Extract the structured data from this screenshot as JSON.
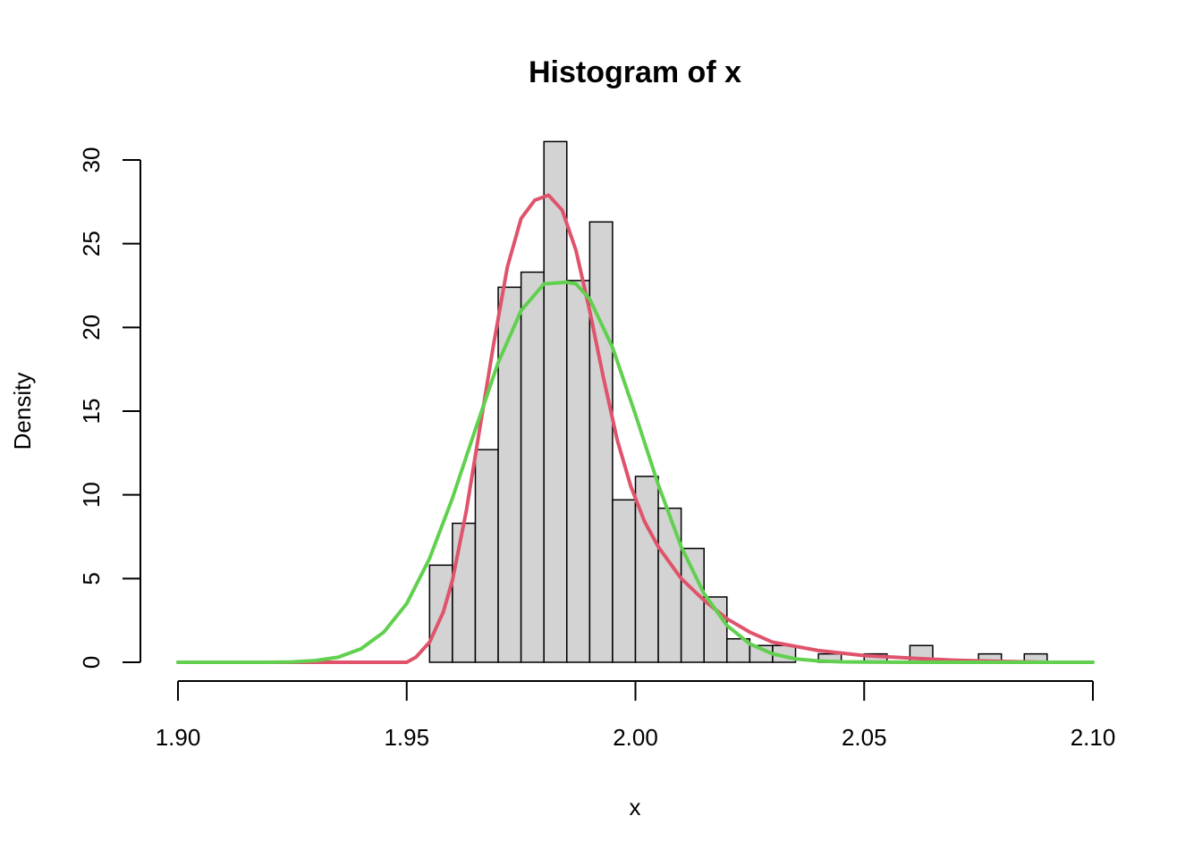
{
  "chart_data": {
    "type": "bar",
    "title": "Histogram of x",
    "xlabel": "x",
    "ylabel": "Density",
    "xlim": [
      1.9,
      2.1
    ],
    "ylim": [
      0,
      30
    ],
    "x_ticks": [
      "1.90",
      "1.95",
      "2.00",
      "2.05",
      "2.10"
    ],
    "x_tick_values": [
      1.9,
      1.95,
      2.0,
      2.05,
      2.1
    ],
    "y_ticks": [
      "0",
      "5",
      "10",
      "15",
      "20",
      "25",
      "30"
    ],
    "y_tick_values": [
      0,
      5,
      10,
      15,
      20,
      25,
      30
    ],
    "bin_width": 0.005,
    "bins": [
      {
        "start": 1.955,
        "density": 5.8
      },
      {
        "start": 1.96,
        "density": 8.3
      },
      {
        "start": 1.965,
        "density": 12.7
      },
      {
        "start": 1.97,
        "density": 22.4
      },
      {
        "start": 1.975,
        "density": 23.3
      },
      {
        "start": 1.98,
        "density": 31.1
      },
      {
        "start": 1.985,
        "density": 22.8
      },
      {
        "start": 1.99,
        "density": 26.3
      },
      {
        "start": 1.995,
        "density": 9.7
      },
      {
        "start": 2.0,
        "density": 11.1
      },
      {
        "start": 2.005,
        "density": 9.2
      },
      {
        "start": 2.01,
        "density": 6.8
      },
      {
        "start": 2.015,
        "density": 3.9
      },
      {
        "start": 2.02,
        "density": 1.4
      },
      {
        "start": 2.025,
        "density": 1.0
      },
      {
        "start": 2.03,
        "density": 1.0
      },
      {
        "start": 2.035,
        "density": 0.0
      },
      {
        "start": 2.04,
        "density": 0.5
      },
      {
        "start": 2.045,
        "density": 0.0
      },
      {
        "start": 2.05,
        "density": 0.5
      },
      {
        "start": 2.055,
        "density": 0.0
      },
      {
        "start": 2.06,
        "density": 1.0
      },
      {
        "start": 2.065,
        "density": 0.0
      },
      {
        "start": 2.07,
        "density": 0.0
      },
      {
        "start": 2.075,
        "density": 0.5
      },
      {
        "start": 2.08,
        "density": 0.0
      },
      {
        "start": 2.085,
        "density": 0.5
      }
    ],
    "curves": [
      {
        "color": "#DF536B",
        "x": [
          1.9,
          1.92,
          1.94,
          1.95,
          1.952,
          1.955,
          1.958,
          1.96,
          1.963,
          1.966,
          1.969,
          1.972,
          1.975,
          1.978,
          1.981,
          1.984,
          1.987,
          1.99,
          1.993,
          1.996,
          1.999,
          2.002,
          2.005,
          2.01,
          2.015,
          2.02,
          2.025,
          2.03,
          2.04,
          2.05,
          2.06,
          2.07,
          2.08,
          2.09
        ],
        "y": [
          0,
          0,
          0,
          0,
          0.3,
          1.2,
          3.0,
          4.9,
          9.0,
          14.0,
          19.0,
          23.6,
          26.5,
          27.6,
          27.9,
          27.0,
          24.6,
          21.0,
          17.0,
          13.3,
          10.5,
          8.4,
          6.9,
          5.0,
          3.7,
          2.6,
          1.8,
          1.2,
          0.7,
          0.4,
          0.25,
          0.12,
          0.05,
          0.0
        ]
      },
      {
        "color": "#61D04F",
        "x": [
          1.9,
          1.92,
          1.925,
          1.93,
          1.935,
          1.94,
          1.945,
          1.95,
          1.955,
          1.96,
          1.965,
          1.97,
          1.975,
          1.98,
          1.985,
          1.987,
          1.99,
          1.995,
          2.0,
          2.005,
          2.01,
          2.015,
          2.02,
          2.025,
          2.03,
          2.035,
          2.04,
          2.045,
          2.05,
          2.06,
          2.08,
          2.1
        ],
        "y": [
          0,
          0,
          0.02,
          0.1,
          0.3,
          0.8,
          1.8,
          3.5,
          6.2,
          9.8,
          13.9,
          17.9,
          21.0,
          22.6,
          22.7,
          22.6,
          21.7,
          18.8,
          14.8,
          10.6,
          6.9,
          4.1,
          2.2,
          1.1,
          0.5,
          0.2,
          0.08,
          0.03,
          0.01,
          0,
          0,
          0
        ]
      }
    ]
  }
}
